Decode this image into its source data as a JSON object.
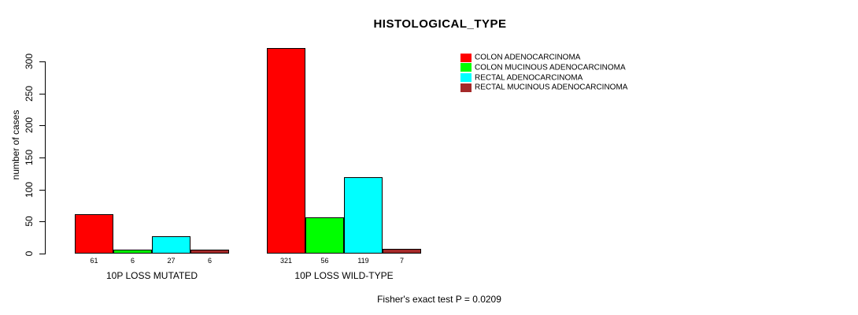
{
  "chart_data": {
    "type": "bar",
    "title": "HISTOLOGICAL_TYPE",
    "ylabel": "number of cases",
    "xlabel": "",
    "annotation": "Fisher's exact test P = 0.0209",
    "ylim": [
      0,
      300
    ],
    "yticks": [
      0,
      50,
      100,
      150,
      200,
      250,
      300
    ],
    "grid": false,
    "legend_position": "top-right",
    "background_color": "#ffffff",
    "axis_color": "#000000",
    "categories": [
      "10P LOSS MUTATED",
      "10P LOSS WILD-TYPE"
    ],
    "series": [
      {
        "name": "COLON ADENOCARCINOMA",
        "color": "#FF0000",
        "values": [
          61,
          321
        ]
      },
      {
        "name": "COLON MUCINOUS ADENOCARCINOMA",
        "color": "#00FF00",
        "values": [
          6,
          56
        ]
      },
      {
        "name": "RECTAL ADENOCARCINOMA",
        "color": "#00FFFF",
        "values": [
          27,
          119
        ]
      },
      {
        "name": "RECTAL MUCINOUS ADENOCARCINOMA",
        "color": "#A52A2A",
        "values": [
          6,
          7
        ]
      }
    ]
  }
}
